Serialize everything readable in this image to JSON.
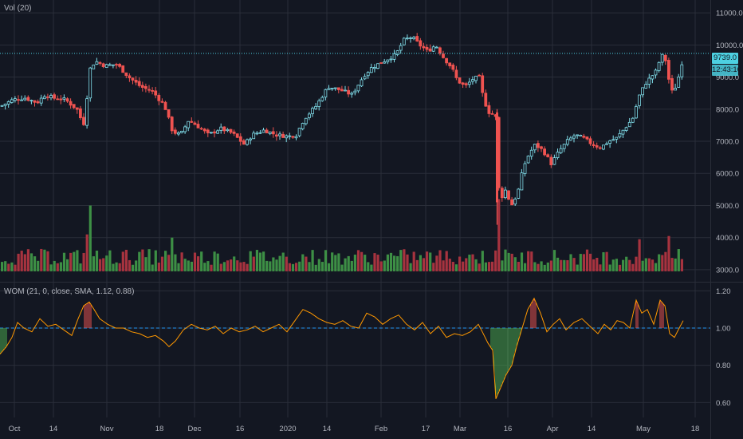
{
  "colors": {
    "background": "#131722",
    "grid": "#2a2e39",
    "up": "#26a69a",
    "down": "#ef5350",
    "up_outline": "#80deea",
    "vol_up": "#3d8f45",
    "vol_down": "#a7333f",
    "wom_line": "#ff9800",
    "wom_ref": "#2196f3",
    "wom_high": "#ef5350",
    "wom_low": "#4caf50",
    "price_line": "#4dd0e1",
    "axis_text": "#b2b5be"
  },
  "indicators": {
    "volume_label": "Vol (20)",
    "wom_label": "WOM (21, 0, close, SMA, 1.12, 0.88)"
  },
  "price_tags": {
    "last_price": "9739.0",
    "countdown": "12:43:10"
  },
  "chart_data": [
    {
      "type": "candlestick",
      "pane": "price",
      "ylim": [
        2700,
        11400
      ],
      "y_ticks": [
        "11000.0",
        "10000.0",
        "9000.0",
        "8000.0",
        "7000.0",
        "6000.0",
        "5000.0",
        "4000.0",
        "3000.0"
      ],
      "last_price": 9739.0,
      "close_path": [
        [
          0,
          8100
        ],
        [
          15,
          8300
        ],
        [
          30,
          8350
        ],
        [
          45,
          8200
        ],
        [
          55,
          8450
        ],
        [
          65,
          8350
        ],
        [
          80,
          8300
        ],
        [
          95,
          8000
        ],
        [
          100,
          7700
        ],
        [
          105,
          7500
        ],
        [
          110,
          9200
        ],
        [
          118,
          9500
        ],
        [
          130,
          9350
        ],
        [
          145,
          9400
        ],
        [
          160,
          9000
        ],
        [
          175,
          8700
        ],
        [
          190,
          8550
        ],
        [
          205,
          8100
        ],
        [
          215,
          7300
        ],
        [
          225,
          7200
        ],
        [
          235,
          7650
        ],
        [
          245,
          7500
        ],
        [
          260,
          7200
        ],
        [
          275,
          7400
        ],
        [
          290,
          7250
        ],
        [
          305,
          6900
        ],
        [
          315,
          7200
        ],
        [
          330,
          7350
        ],
        [
          345,
          7200
        ],
        [
          360,
          7150
        ],
        [
          370,
          7200
        ],
        [
          380,
          7700
        ],
        [
          395,
          8100
        ],
        [
          410,
          8700
        ],
        [
          425,
          8600
        ],
        [
          440,
          8450
        ],
        [
          455,
          9050
        ],
        [
          465,
          9300
        ],
        [
          480,
          9500
        ],
        [
          495,
          9700
        ],
        [
          505,
          10150
        ],
        [
          515,
          10250
        ],
        [
          525,
          10000
        ],
        [
          535,
          9800
        ],
        [
          545,
          10000
        ],
        [
          555,
          9600
        ],
        [
          565,
          9300
        ],
        [
          572,
          8900
        ],
        [
          582,
          8700
        ],
        [
          592,
          8950
        ],
        [
          600,
          9000
        ],
        [
          605,
          8300
        ],
        [
          612,
          7900
        ],
        [
          620,
          7800
        ],
        [
          625,
          5100
        ],
        [
          632,
          5500
        ],
        [
          640,
          5000
        ],
        [
          648,
          5400
        ],
        [
          655,
          6200
        ],
        [
          662,
          6600
        ],
        [
          670,
          6900
        ],
        [
          680,
          6700
        ],
        [
          690,
          6300
        ],
        [
          700,
          6700
        ],
        [
          710,
          7000
        ],
        [
          720,
          7200
        ],
        [
          730,
          7100
        ],
        [
          742,
          6900
        ],
        [
          752,
          6800
        ],
        [
          762,
          7000
        ],
        [
          772,
          7100
        ],
        [
          782,
          7400
        ],
        [
          792,
          7700
        ],
        [
          800,
          8400
        ],
        [
          808,
          8800
        ],
        [
          815,
          9000
        ],
        [
          822,
          9200
        ],
        [
          828,
          9700
        ],
        [
          834,
          9500
        ],
        [
          840,
          8500
        ],
        [
          846,
          8700
        ],
        [
          852,
          9200
        ],
        [
          856,
          9739
        ]
      ]
    },
    {
      "type": "bar",
      "pane": "volume",
      "series": [
        {
          "name": "Vol (20)"
        }
      ],
      "spikes": [
        [
          110,
          5000
        ],
        [
          107,
          4100
        ],
        [
          212,
          4000
        ],
        [
          622,
          5200
        ],
        [
          800,
          3950
        ],
        [
          838,
          4050
        ],
        [
          618,
          3600
        ]
      ]
    },
    {
      "type": "line",
      "pane": "wom",
      "ylim": [
        0.52,
        1.24
      ],
      "y_ticks": [
        "1.20",
        "1.00",
        "0.80",
        "0.60"
      ],
      "reference": 1.0,
      "upper_band": 1.12,
      "lower_band": 0.88,
      "line": [
        [
          0,
          0.86
        ],
        [
          8,
          0.9
        ],
        [
          15,
          0.95
        ],
        [
          22,
          1.03
        ],
        [
          30,
          1.0
        ],
        [
          40,
          0.98
        ],
        [
          50,
          1.05
        ],
        [
          60,
          1.01
        ],
        [
          70,
          1.02
        ],
        [
          80,
          0.99
        ],
        [
          90,
          0.96
        ],
        [
          98,
          1.05
        ],
        [
          105,
          1.12
        ],
        [
          112,
          1.14
        ],
        [
          118,
          1.1
        ],
        [
          125,
          1.05
        ],
        [
          135,
          1.02
        ],
        [
          145,
          1.0
        ],
        [
          155,
          1.0
        ],
        [
          165,
          0.98
        ],
        [
          175,
          0.97
        ],
        [
          185,
          0.95
        ],
        [
          195,
          0.96
        ],
        [
          205,
          0.93
        ],
        [
          212,
          0.9
        ],
        [
          220,
          0.93
        ],
        [
          230,
          0.99
        ],
        [
          240,
          1.02
        ],
        [
          250,
          1.0
        ],
        [
          260,
          0.99
        ],
        [
          270,
          1.01
        ],
        [
          280,
          0.97
        ],
        [
          290,
          1.0
        ],
        [
          300,
          0.98
        ],
        [
          310,
          0.99
        ],
        [
          320,
          1.01
        ],
        [
          330,
          0.98
        ],
        [
          340,
          1.0
        ],
        [
          350,
          1.02
        ],
        [
          360,
          0.98
        ],
        [
          370,
          1.04
        ],
        [
          380,
          1.1
        ],
        [
          390,
          1.08
        ],
        [
          400,
          1.05
        ],
        [
          410,
          1.03
        ],
        [
          420,
          1.02
        ],
        [
          430,
          1.04
        ],
        [
          440,
          1.01
        ],
        [
          450,
          1.0
        ],
        [
          460,
          1.08
        ],
        [
          470,
          1.06
        ],
        [
          480,
          1.02
        ],
        [
          490,
          1.05
        ],
        [
          500,
          1.07
        ],
        [
          510,
          1.02
        ],
        [
          520,
          0.99
        ],
        [
          530,
          1.03
        ],
        [
          540,
          0.97
        ],
        [
          550,
          1.01
        ],
        [
          560,
          0.95
        ],
        [
          570,
          0.97
        ],
        [
          580,
          0.96
        ],
        [
          590,
          0.98
        ],
        [
          600,
          1.02
        ],
        [
          605,
          0.98
        ],
        [
          612,
          0.92
        ],
        [
          618,
          0.88
        ],
        [
          622,
          0.62
        ],
        [
          628,
          0.68
        ],
        [
          635,
          0.75
        ],
        [
          642,
          0.8
        ],
        [
          648,
          0.9
        ],
        [
          655,
          1.0
        ],
        [
          662,
          1.1
        ],
        [
          670,
          1.16
        ],
        [
          678,
          1.08
        ],
        [
          686,
          0.98
        ],
        [
          694,
          1.02
        ],
        [
          702,
          1.05
        ],
        [
          710,
          0.99
        ],
        [
          720,
          1.03
        ],
        [
          730,
          1.05
        ],
        [
          740,
          1.01
        ],
        [
          750,
          0.97
        ],
        [
          758,
          1.02
        ],
        [
          766,
          0.99
        ],
        [
          774,
          1.04
        ],
        [
          782,
          1.03
        ],
        [
          790,
          1.0
        ],
        [
          798,
          1.15
        ],
        [
          805,
          1.08
        ],
        [
          812,
          1.1
        ],
        [
          820,
          1.02
        ],
        [
          828,
          1.15
        ],
        [
          834,
          1.12
        ],
        [
          840,
          0.97
        ],
        [
          846,
          0.95
        ],
        [
          852,
          1.0
        ],
        [
          857,
          1.04
        ]
      ]
    }
  ],
  "x_axis": {
    "ticks": [
      {
        "label": "Oct",
        "x": 18
      },
      {
        "label": "14",
        "x": 67
      },
      {
        "label": "Nov",
        "x": 134
      },
      {
        "label": "18",
        "x": 200
      },
      {
        "label": "Dec",
        "x": 244
      },
      {
        "label": "16",
        "x": 301
      },
      {
        "label": "2020",
        "x": 361
      },
      {
        "label": "14",
        "x": 410
      },
      {
        "label": "Feb",
        "x": 478
      },
      {
        "label": "17",
        "x": 534
      },
      {
        "label": "Mar",
        "x": 577
      },
      {
        "label": "16",
        "x": 637
      },
      {
        "label": "Apr",
        "x": 693
      },
      {
        "label": "14",
        "x": 742
      },
      {
        "label": "May",
        "x": 807
      },
      {
        "label": "18",
        "x": 872
      }
    ]
  }
}
